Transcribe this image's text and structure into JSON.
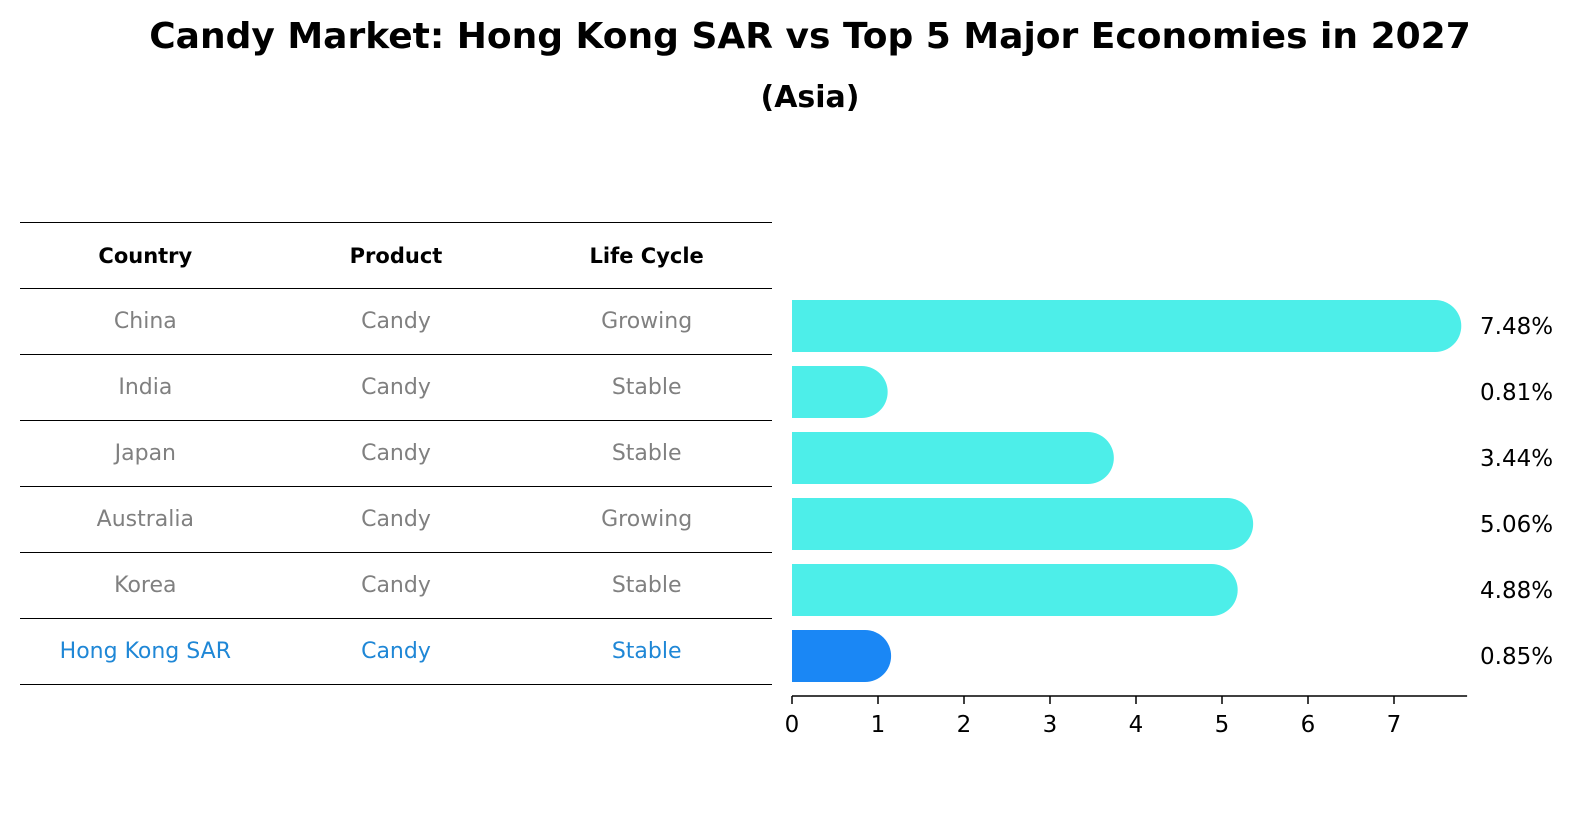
{
  "chart_title": "Candy Market: Hong Kong SAR vs Top 5 Major Economies in 2027",
  "chart_subtitle": "(Asia)",
  "table": {
    "headers": [
      "Country",
      "Product",
      "Life Cycle"
    ],
    "rows": [
      {
        "country": "China",
        "product": "Candy",
        "life_cycle": "Growing"
      },
      {
        "country": "India",
        "product": "Candy",
        "life_cycle": "Stable"
      },
      {
        "country": "Japan",
        "product": "Candy",
        "life_cycle": "Stable"
      },
      {
        "country": "Australia",
        "product": "Candy",
        "life_cycle": "Growing"
      },
      {
        "country": "Korea",
        "product": "Candy",
        "life_cycle": "Stable"
      },
      {
        "country": "Hong Kong SAR",
        "product": "Candy",
        "life_cycle": "Stable"
      }
    ],
    "colors": {
      "normal_text": "#808080",
      "highlight_text": "#1f87d6",
      "header_text": "#000000"
    }
  },
  "chart_data": {
    "type": "bar",
    "orientation": "horizontal",
    "title": "Candy Market: Hong Kong SAR vs Top 5 Major Economies in 2027",
    "subtitle": "(Asia)",
    "categories": [
      "China",
      "India",
      "Japan",
      "Australia",
      "Korea",
      "Hong Kong SAR"
    ],
    "values": [
      7.48,
      0.81,
      3.44,
      5.06,
      4.88,
      0.85
    ],
    "value_labels": [
      "7.48%",
      "0.81%",
      "3.44%",
      "5.06%",
      "4.88%",
      "0.85%"
    ],
    "highlight_index": 5,
    "colors": {
      "bar": "#4deee9",
      "highlight": "#1a87f5"
    },
    "xlim": [
      0,
      7.85
    ],
    "xticks": [
      0,
      1,
      2,
      3,
      4,
      5,
      6,
      7
    ],
    "xlabel": "",
    "ylabel": "",
    "grid": false,
    "legend": "none"
  }
}
